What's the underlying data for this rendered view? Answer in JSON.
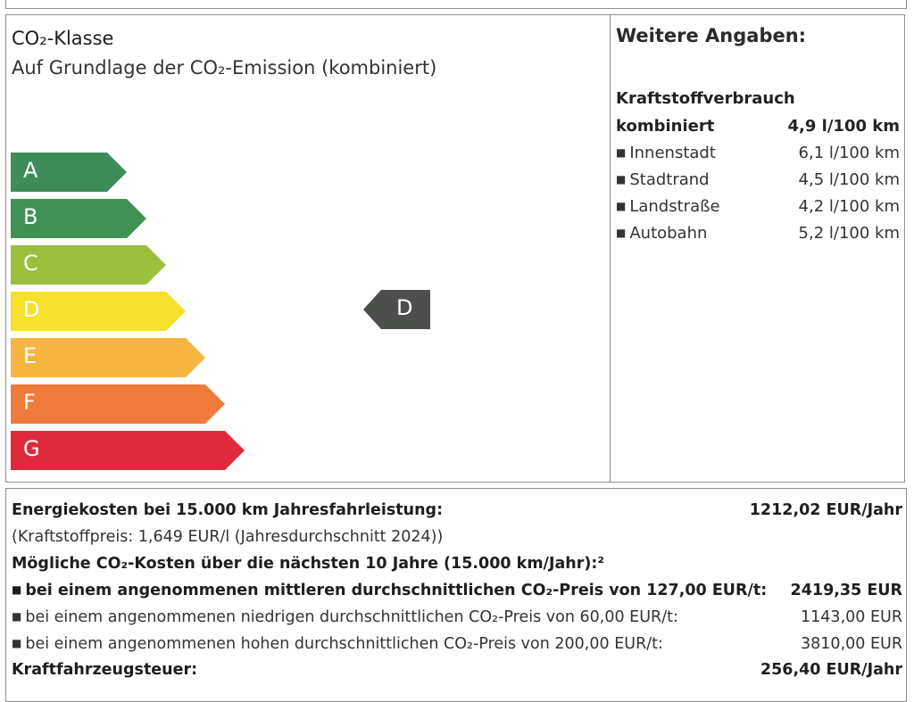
{
  "co2": {
    "title": "CO₂-Klasse",
    "subtitle": "Auf Grundlage der CO₂-Emission (kombiniert)",
    "classes": [
      {
        "letter": "A",
        "color": "#3d8c5a"
      },
      {
        "letter": "B",
        "color": "#3f9253"
      },
      {
        "letter": "C",
        "color": "#9bc13c"
      },
      {
        "letter": "D",
        "color": "#f5e12c"
      },
      {
        "letter": "E",
        "color": "#f6b53f"
      },
      {
        "letter": "F",
        "color": "#f07a3a"
      },
      {
        "letter": "G",
        "color": "#e02a3c"
      }
    ],
    "rating": "D",
    "rating_color": "#4d4f4d"
  },
  "info": {
    "heading": "Weitere Angaben:",
    "fuel_title": "Kraftstoffverbrauch",
    "combined_label": "kombiniert",
    "combined_value": "4,9 l/100 km",
    "rows": [
      {
        "label": "Innenstadt",
        "value": "6,1 l/100 km"
      },
      {
        "label": "Stadtrand",
        "value": "4,5 l/100 km"
      },
      {
        "label": "Landstraße",
        "value": "4,2 l/100 km"
      },
      {
        "label": "Autobahn",
        "value": "5,2 l/100 km"
      }
    ]
  },
  "costs": {
    "energy_label": "Energiekosten bei 15.000 km Jahresfahrleistung:",
    "energy_value": "1212,02 EUR/Jahr",
    "fuel_price_note": "(Kraftstoffpreis: 1,649 EUR/l (Jahresdurchschnitt 2024))",
    "co2_costs_label": "Mögliche CO₂-Kosten über die nächsten 10 Jahre (15.000 km/Jahr):²",
    "mid_label": "bei einem angenommenen mittleren durchschnittlichen CO₂-Preis von 127,00 EUR/t:",
    "mid_value": "2419,35 EUR",
    "low_label": "bei einem angenommenen niedrigen durchschnittlichen CO₂-Preis von 60,00 EUR/t:",
    "low_value": "1143,00 EUR",
    "high_label": "bei einem angenommenen hohen durchschnittlichen CO₂-Preis von 200,00 EUR/t:",
    "high_value": "3810,00 EUR",
    "tax_label": "Kraftfahrzeugsteuer:",
    "tax_value": "256,40 EUR/Jahr"
  }
}
